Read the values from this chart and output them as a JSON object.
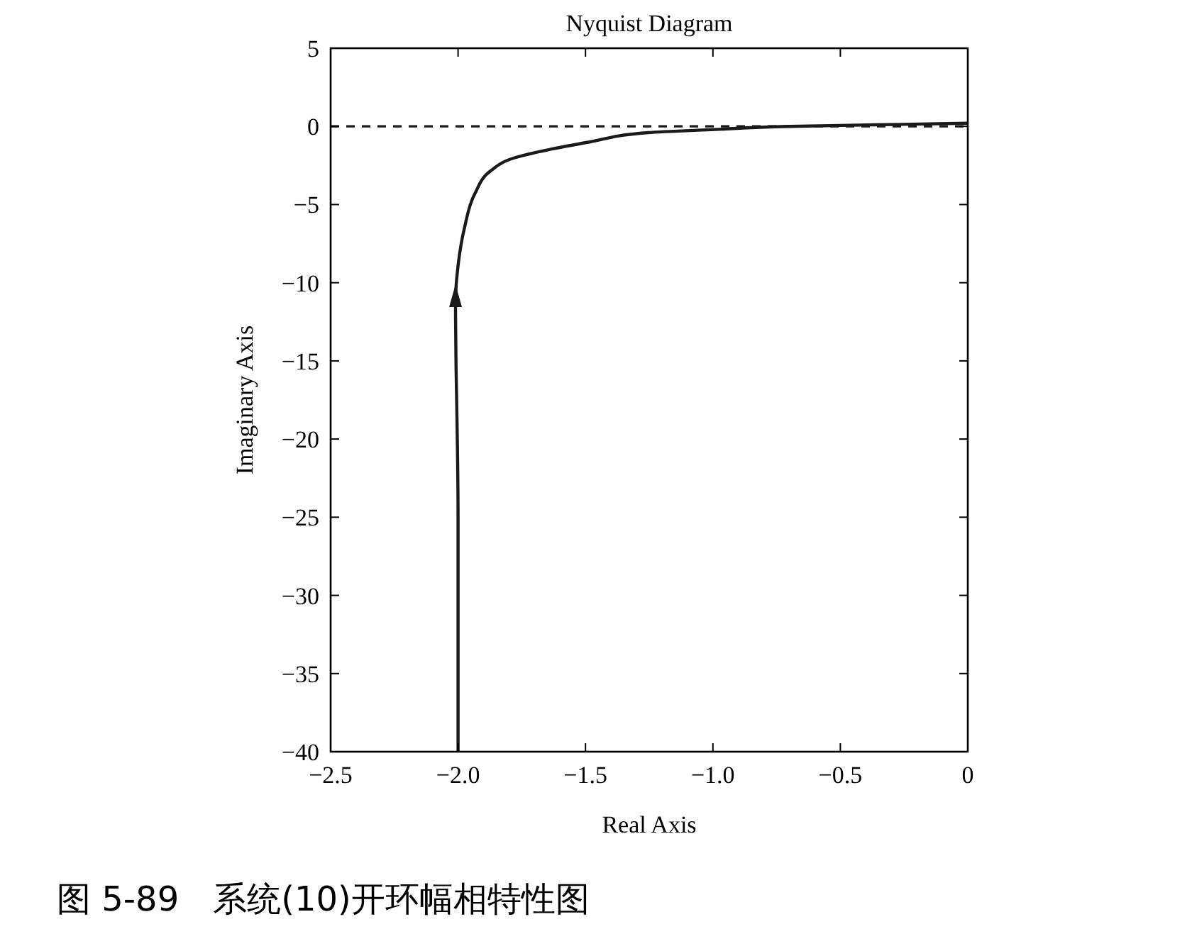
{
  "chart_data": {
    "type": "line",
    "title": "Nyquist Diagram",
    "xlabel": "Real Axis",
    "ylabel": "Imaginary Axis",
    "xlim": [
      -2.5,
      0
    ],
    "ylim": [
      -40,
      5
    ],
    "xticks": [
      {
        "value": -2.5,
        "label": "−2.5"
      },
      {
        "value": -2,
        "label": "−2.0"
      },
      {
        "value": -1.5,
        "label": "−1.5"
      },
      {
        "value": -1,
        "label": "−1.0"
      },
      {
        "value": -0.5,
        "label": "−0.5"
      },
      0
    ],
    "yticks": [
      {
        "value": -40,
        "label": "−40"
      },
      {
        "value": -35,
        "label": "−35"
      },
      {
        "value": -30,
        "label": "−30"
      },
      {
        "value": -25,
        "label": "−25"
      },
      {
        "value": -20,
        "label": "−20"
      },
      {
        "value": -15,
        "label": "−15"
      },
      {
        "value": -10,
        "label": "−10"
      },
      {
        "value": -5,
        "label": "−5"
      },
      0,
      5
    ],
    "grid": false,
    "marker": "none",
    "line_style": "solid",
    "series": [
      {
        "color": "#1a1a1a",
        "x": [
          -2.0,
          -2.0,
          -2.005,
          -2.008,
          -2.01,
          -2.0,
          -1.975,
          -1.934,
          -1.869,
          -1.795,
          -1.648,
          -1.484,
          -1.254,
          -0.992,
          -0.697,
          -0.369,
          0
        ],
        "values": [
          -40,
          -25,
          -18,
          -15.3,
          -11.2,
          -8.9,
          -6.5,
          -4.3,
          -2.8,
          -2.1,
          -1.5,
          -1.0,
          -0.4,
          -0.2,
          0,
          0.1,
          0.2
        ]
      }
    ],
    "ref_lines": [
      {
        "axis": "y",
        "value": 0,
        "line_style": "dashed",
        "color": "#1a1a1a"
      }
    ],
    "annotations": [
      "图 5-89　系统(10)开环幅相特性图"
    ]
  }
}
